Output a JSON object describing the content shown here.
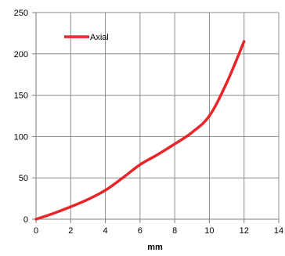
{
  "chart_data": {
    "type": "line",
    "title": "",
    "xlabel": "mm",
    "ylabel": "",
    "xlim": [
      0,
      14
    ],
    "ylim": [
      0,
      250
    ],
    "xticks": [
      0,
      2,
      4,
      6,
      8,
      10,
      12,
      14
    ],
    "yticks": [
      0,
      50,
      100,
      150,
      200,
      250
    ],
    "grid": true,
    "legend_position": "top-left",
    "series": [
      {
        "name": "Axial",
        "color": "#e8262a",
        "x": [
          0,
          1,
          2,
          3,
          4,
          5,
          6,
          7,
          8,
          9,
          10,
          11,
          12
        ],
        "y": [
          0,
          7,
          15,
          24,
          35,
          50,
          66,
          78,
          91,
          105,
          125,
          165,
          215
        ]
      }
    ]
  }
}
